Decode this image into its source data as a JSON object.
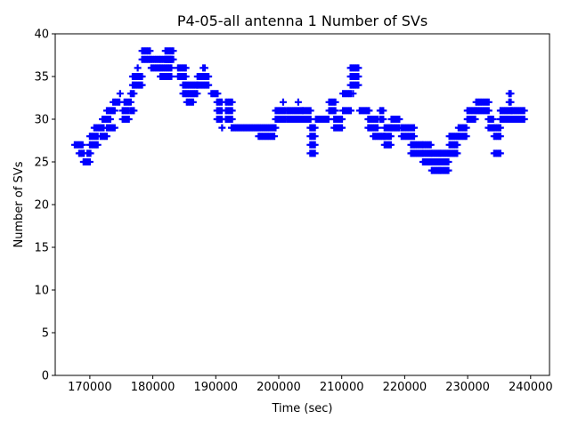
{
  "chart_data": {
    "type": "scatter",
    "title": "P4-05-all antenna 1 Number of SVs",
    "xlabel": "Time (sec)",
    "ylabel": "Number of SVs",
    "xlim": [
      164500,
      243000
    ],
    "ylim": [
      0,
      40
    ],
    "xticks": [
      170000,
      180000,
      190000,
      200000,
      210000,
      220000,
      230000,
      240000
    ],
    "yticks": [
      0,
      5,
      10,
      15,
      20,
      25,
      30,
      35,
      40
    ],
    "grid": false,
    "marker": "+",
    "color": "#0000ff",
    "series_segments_note": "each entry: [time_start, time_end, [SV counts observed]]",
    "segments": [
      [
        167600,
        168900,
        [
          27
        ]
      ],
      [
        168300,
        169200,
        [
          26
        ]
      ],
      [
        169000,
        170000,
        [
          25
        ]
      ],
      [
        169600,
        170300,
        [
          26
        ]
      ],
      [
        170000,
        171300,
        [
          27,
          28
        ]
      ],
      [
        170700,
        172400,
        [
          29
        ]
      ],
      [
        171700,
        172700,
        [
          28
        ]
      ],
      [
        172000,
        173400,
        [
          30
        ]
      ],
      [
        172700,
        174100,
        [
          29,
          31
        ]
      ],
      [
        173700,
        174800,
        [
          32
        ]
      ],
      [
        174800,
        174800,
        [
          33
        ]
      ],
      [
        175200,
        176200,
        [
          30,
          31
        ]
      ],
      [
        175500,
        176600,
        [
          32
        ]
      ],
      [
        176500,
        177200,
        [
          31,
          33
        ]
      ],
      [
        176800,
        178300,
        [
          34,
          35
        ]
      ],
      [
        177600,
        177600,
        [
          36
        ]
      ],
      [
        178300,
        179750,
        [
          37,
          38
        ]
      ],
      [
        179750,
        181200,
        [
          36,
          37
        ]
      ],
      [
        181200,
        183000,
        [
          35,
          36,
          37
        ]
      ],
      [
        182000,
        183300,
        [
          37,
          38
        ]
      ],
      [
        184000,
        185400,
        [
          35,
          36
        ]
      ],
      [
        184800,
        187100,
        [
          33,
          34
        ]
      ],
      [
        185400,
        186600,
        [
          32
        ]
      ],
      [
        187100,
        189000,
        [
          34,
          35
        ]
      ],
      [
        188000,
        188400,
        [
          36
        ]
      ],
      [
        189300,
        190400,
        [
          33
        ]
      ],
      [
        190200,
        191000,
        [
          30,
          31,
          32
        ]
      ],
      [
        191000,
        191000,
        [
          29
        ]
      ],
      [
        191600,
        192800,
        [
          30,
          31,
          32
        ]
      ],
      [
        192500,
        199500,
        [
          29
        ]
      ],
      [
        196800,
        199500,
        [
          28
        ]
      ],
      [
        199500,
        201000,
        [
          30,
          31
        ]
      ],
      [
        200700,
        200700,
        [
          32
        ]
      ],
      [
        201300,
        203800,
        [
          30,
          31
        ]
      ],
      [
        203100,
        203100,
        [
          32
        ]
      ],
      [
        203800,
        205200,
        [
          30,
          31
        ]
      ],
      [
        205000,
        205900,
        [
          26,
          27,
          28,
          29
        ]
      ],
      [
        205900,
        208000,
        [
          30
        ]
      ],
      [
        208000,
        209200,
        [
          31,
          32
        ]
      ],
      [
        208800,
        210200,
        [
          29,
          30
        ]
      ],
      [
        210200,
        211600,
        [
          31,
          33
        ]
      ],
      [
        211400,
        212700,
        [
          34,
          35,
          36
        ]
      ],
      [
        211800,
        211800,
        [
          33
        ]
      ],
      [
        212850,
        214400,
        [
          31
        ]
      ],
      [
        214200,
        215800,
        [
          29,
          30
        ]
      ],
      [
        215000,
        216800,
        [
          28
        ]
      ],
      [
        216100,
        216800,
        [
          30,
          31
        ]
      ],
      [
        216800,
        217900,
        [
          27,
          28,
          29
        ]
      ],
      [
        217900,
        219350,
        [
          29,
          30
        ]
      ],
      [
        219500,
        221500,
        [
          28,
          29
        ]
      ],
      [
        221000,
        222900,
        [
          26,
          27
        ]
      ],
      [
        222900,
        224300,
        [
          25,
          26,
          27
        ]
      ],
      [
        224300,
        225700,
        [
          24,
          25,
          26
        ]
      ],
      [
        225700,
        227100,
        [
          24,
          25,
          26
        ]
      ],
      [
        227100,
        228550,
        [
          26,
          27,
          28
        ]
      ],
      [
        228550,
        229950,
        [
          28,
          29
        ]
      ],
      [
        229950,
        231350,
        [
          30,
          31
        ]
      ],
      [
        231350,
        233500,
        [
          31,
          32
        ]
      ],
      [
        233300,
        234200,
        [
          29,
          30
        ]
      ],
      [
        234200,
        235200,
        [
          26,
          28,
          29
        ]
      ],
      [
        235200,
        237000,
        [
          30,
          31
        ]
      ],
      [
        236600,
        237000,
        [
          32,
          33
        ]
      ],
      [
        237000,
        239150,
        [
          30,
          31
        ]
      ]
    ]
  }
}
